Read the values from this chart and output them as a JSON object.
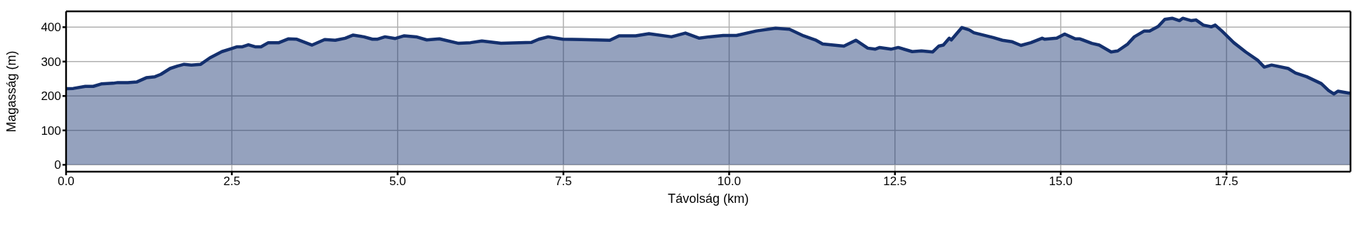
{
  "chart_data": {
    "type": "area",
    "xlabel": "Távolság (km)",
    "ylabel": "Magasság (m)",
    "x": [
      0,
      0.11,
      0.29,
      0.41,
      0.53,
      0.71,
      0.78,
      0.93,
      1.07,
      1.21,
      1.34,
      1.43,
      1.57,
      1.68,
      1.78,
      1.89,
      2.03,
      2.17,
      2.35,
      2.5,
      2.58,
      2.66,
      2.75,
      2.85,
      2.94,
      3.05,
      3.21,
      3.35,
      3.48,
      3.71,
      3.9,
      4.06,
      4.21,
      4.33,
      4.49,
      4.62,
      4.69,
      4.81,
      4.96,
      5.1,
      5.28,
      5.44,
      5.63,
      5.92,
      6.1,
      6.27,
      6.56,
      6.84,
      7.02,
      7.13,
      7.27,
      7.49,
      7.77,
      8.2,
      8.34,
      8.59,
      8.79,
      9.13,
      9.34,
      9.55,
      9.7,
      9.91,
      10.11,
      10.41,
      10.7,
      10.91,
      11.12,
      11.3,
      11.41,
      11.73,
      11.91,
      12.09,
      12.2,
      12.27,
      12.44,
      12.55,
      12.76,
      12.9,
      13.07,
      13.16,
      13.23,
      13.32,
      13.35,
      13.51,
      13.62,
      13.69,
      13.98,
      14.12,
      14.26,
      14.4,
      14.55,
      14.72,
      14.76,
      14.94,
      15.06,
      15.22,
      15.29,
      15.47,
      15.58,
      15.76,
      15.86,
      16.01,
      16.11,
      16.26,
      16.34,
      16.47,
      16.57,
      16.68,
      16.79,
      16.84,
      16.97,
      17.04,
      17.15,
      17.27,
      17.33,
      17.43,
      17.61,
      17.79,
      17.97,
      18.07,
      18.18,
      18.43,
      18.54,
      18.71,
      18.93,
      19.04,
      19.12,
      19.18,
      19.36
    ],
    "series": [
      {
        "color": "#14306e",
        "values": [
          221,
          222,
          228,
          228,
          235,
          237,
          239,
          239,
          241,
          253,
          256,
          263,
          280,
          287,
          292,
          290,
          292,
          311,
          329,
          338,
          343,
          343,
          349,
          343,
          343,
          355,
          355,
          366,
          365,
          348,
          364,
          362,
          368,
          377,
          372,
          365,
          365,
          372,
          367,
          375,
          372,
          363,
          366,
          353,
          355,
          360,
          353,
          355,
          356,
          365,
          372,
          365,
          364,
          362,
          375,
          375,
          381,
          372,
          383,
          368,
          372,
          376,
          376,
          389,
          397,
          394,
          375,
          363,
          351,
          345,
          362,
          339,
          336,
          341,
          336,
          341,
          329,
          331,
          328,
          345,
          348,
          368,
          363,
          399,
          392,
          384,
          370,
          362,
          358,
          347,
          355,
          368,
          365,
          368,
          380,
          366,
          366,
          353,
          348,
          328,
          331,
          351,
          372,
          389,
          389,
          402,
          423,
          426,
          419,
          426,
          419,
          421,
          406,
          401,
          406,
          389,
          355,
          328,
          304,
          284,
          290,
          280,
          267,
          256,
          236,
          216,
          206,
          214,
          208
        ]
      }
    ],
    "xlim": [
      0,
      19.37
    ],
    "xticks": [
      {
        "value": 0,
        "label": "0.0"
      },
      {
        "value": 2.5,
        "label": "2.5"
      },
      {
        "value": 5,
        "label": "5.0"
      },
      {
        "value": 7.5,
        "label": "7.5"
      },
      {
        "value": 10,
        "label": "10.0"
      },
      {
        "value": 12.5,
        "label": "12.5"
      },
      {
        "value": 15,
        "label": "15.0"
      },
      {
        "value": 17.5,
        "label": "17.5"
      }
    ],
    "ylim": [
      -20,
      446
    ],
    "yticks": [
      0,
      100,
      200,
      300,
      400
    ],
    "grid": true
  }
}
